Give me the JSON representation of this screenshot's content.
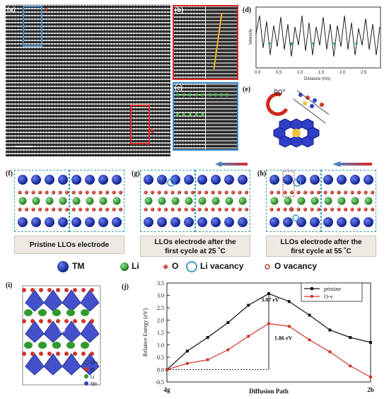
{
  "panels": {
    "a": "(a)",
    "b": "(b)",
    "c": "(c)",
    "d": "(d)",
    "e": "(e)",
    "f": "(f)",
    "g": "(g)",
    "h": "(h)",
    "i": "(i)",
    "j": "(j)"
  },
  "panel_a": {
    "box_c": "c",
    "box_b": "b"
  },
  "panel_d": {
    "xlabel": "Distance (nm)",
    "ylabel": "Intensity",
    "ticks": [
      "0.0",
      "0.5",
      "1.0",
      "1.5",
      "2.0",
      "2.5"
    ]
  },
  "panel_e": {
    "angle": "90°"
  },
  "captions": {
    "f": "Pristine LLOs electrode",
    "g_line1": "LLOs electrode after the",
    "g_line2": "first cycle at 25 ˚C",
    "h_line1": "LLOs electrode after the",
    "h_line2": "first cycle at 55 ˚C"
  },
  "legend": {
    "tm": "TM",
    "li": "Li",
    "o": "O",
    "li_vac": "Li vacancy",
    "o_vac": "O vacancy"
  },
  "panel_i_legend": {
    "ov": "O-v",
    "o": "O",
    "li": "Li",
    "mn": "Mn"
  },
  "colors": {
    "tm": "#1a2fa0",
    "li": "#2e9a2e",
    "o": "#c0271c",
    "li_vac": "#3aa0c8",
    "box_blue": "#3a8fd0",
    "box_red": "#e0262a"
  },
  "chart_data": {
    "type": "line",
    "ylabel": "Relative Energy (eV)",
    "xlabel": "Diffusion Path",
    "ylim": [
      -0.5,
      3.5
    ],
    "yticks": [
      "-0.5",
      "0.0",
      "0.5",
      "1.0",
      "1.5",
      "2.0",
      "2.5",
      "3.0",
      "3.5"
    ],
    "x_endpoints": [
      "4g",
      "2b"
    ],
    "x": [
      0,
      1,
      2,
      3,
      4,
      5,
      6,
      7,
      8,
      9,
      10
    ],
    "series": [
      {
        "name": "pristine",
        "color": "#111111",
        "values": [
          0.0,
          0.75,
          1.3,
          1.9,
          2.6,
          3.07,
          2.75,
          2.2,
          1.6,
          1.3,
          1.1
        ]
      },
      {
        "name": "O-v",
        "color": "#d0352a",
        "values": [
          0.0,
          0.25,
          0.4,
          0.8,
          1.35,
          1.86,
          1.75,
          1.2,
          0.72,
          0.15,
          -0.3
        ]
      }
    ],
    "annotations": [
      "3.07 eV",
      "1.86 eV"
    ]
  }
}
